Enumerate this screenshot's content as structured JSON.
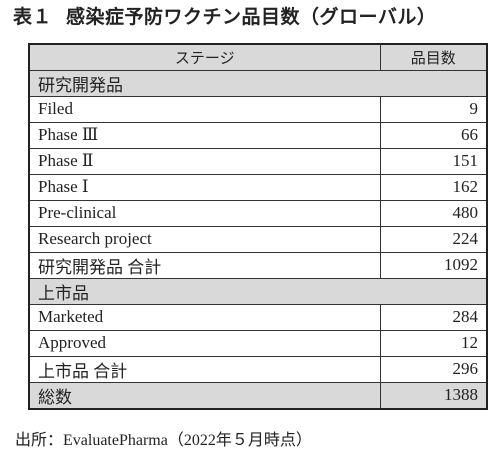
{
  "title": {
    "number": "表１",
    "text": "感染症予防ワクチン品目数（グローバル）"
  },
  "table": {
    "headers": [
      "ステージ",
      "品目数"
    ],
    "rows": [
      {
        "kind": "section",
        "label": "研究開発品",
        "value": ""
      },
      {
        "kind": "data",
        "label": "Filed",
        "value": "9"
      },
      {
        "kind": "data",
        "label": "Phase Ⅲ",
        "value": "66"
      },
      {
        "kind": "data",
        "label": "Phase Ⅱ",
        "value": "151"
      },
      {
        "kind": "data",
        "label": "Phase Ⅰ",
        "value": "162"
      },
      {
        "kind": "data",
        "label": "Pre-clinical",
        "value": "480"
      },
      {
        "kind": "data",
        "label": "Research project",
        "value": "224"
      },
      {
        "kind": "data",
        "label": "研究開発品 合計",
        "value": "1092"
      },
      {
        "kind": "section",
        "label": "上市品",
        "value": ""
      },
      {
        "kind": "data",
        "label": "Marketed",
        "value": "284"
      },
      {
        "kind": "data",
        "label": "Approved",
        "value": "12"
      },
      {
        "kind": "data",
        "label": "上市品 合計",
        "value": "296"
      },
      {
        "kind": "total",
        "label": "総数",
        "value": "1388"
      }
    ]
  },
  "source": "出所：EvaluatePharma（2022年５月時点）",
  "colors": {
    "shade": "#d9d9d9",
    "border": "#333333",
    "text": "#222222"
  }
}
